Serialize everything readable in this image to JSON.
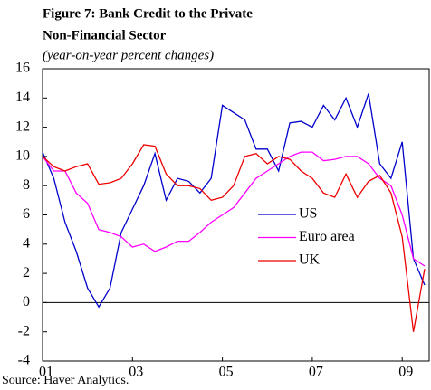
{
  "chart_data": {
    "type": "line",
    "title": [
      "Figure 7: Bank Credit to the Private",
      "Non-Financial Sector"
    ],
    "subtitle": "(year-on-year percent changes)",
    "source": "Source: Haver Analytics.",
    "x": [
      1,
      1.25,
      1.5,
      1.75,
      2,
      2.25,
      2.5,
      2.75,
      3,
      3.25,
      3.5,
      3.75,
      4,
      4.25,
      4.5,
      4.75,
      5,
      5.25,
      5.5,
      5.75,
      6,
      6.25,
      6.5,
      6.75,
      7,
      7.25,
      7.5,
      7.75,
      8,
      8.25,
      8.5,
      8.75,
      9,
      9.25,
      9.5
    ],
    "xlim": [
      1,
      9.6
    ],
    "xticks": [
      {
        "value": 1,
        "label": "01"
      },
      {
        "value": 3,
        "label": "03"
      },
      {
        "value": 5,
        "label": "05"
      },
      {
        "value": 7,
        "label": "07"
      },
      {
        "value": 9,
        "label": "09"
      }
    ],
    "ylim": [
      -4,
      16
    ],
    "yticks": [
      -4,
      -2,
      0,
      2,
      4,
      6,
      8,
      10,
      12,
      14,
      16
    ],
    "legend": "right",
    "series": [
      {
        "name": "US",
        "color": "#0000cc",
        "values": [
          10.3,
          8.5,
          5.5,
          3.5,
          1.0,
          -0.3,
          1.0,
          4.8,
          6.4,
          8.0,
          10.2,
          7.0,
          8.5,
          8.3,
          7.5,
          8.5,
          13.5,
          13.0,
          12.5,
          10.5,
          10.5,
          9.0,
          12.3,
          12.4,
          12.0,
          13.5,
          12.5,
          14.0,
          12.0,
          14.3,
          9.5,
          8.5,
          11.0,
          3.0,
          1.2
        ]
      },
      {
        "name": "Euro area",
        "color": "#ff00ff",
        "values": [
          10.0,
          9.0,
          9.0,
          7.5,
          6.8,
          5.0,
          4.8,
          4.5,
          3.8,
          4.0,
          3.5,
          3.8,
          4.2,
          4.2,
          4.8,
          5.5,
          6.0,
          6.5,
          7.5,
          8.5,
          9.0,
          9.5,
          10.0,
          10.3,
          10.3,
          9.7,
          9.8,
          10.0,
          10.0,
          9.5,
          8.5,
          8.0,
          6.0,
          3.0,
          2.5
        ]
      },
      {
        "name": "UK",
        "color": "#ee0000",
        "values": [
          10.0,
          9.3,
          9.0,
          9.3,
          9.5,
          8.1,
          8.2,
          8.5,
          9.5,
          10.8,
          10.7,
          8.8,
          8.0,
          8.0,
          7.8,
          7.0,
          7.2,
          8.0,
          10.0,
          10.2,
          9.5,
          10.0,
          9.8,
          9.0,
          8.5,
          7.5,
          7.2,
          8.8,
          7.2,
          8.3,
          8.7,
          7.5,
          4.5,
          -2.0,
          2.3
        ]
      }
    ]
  }
}
